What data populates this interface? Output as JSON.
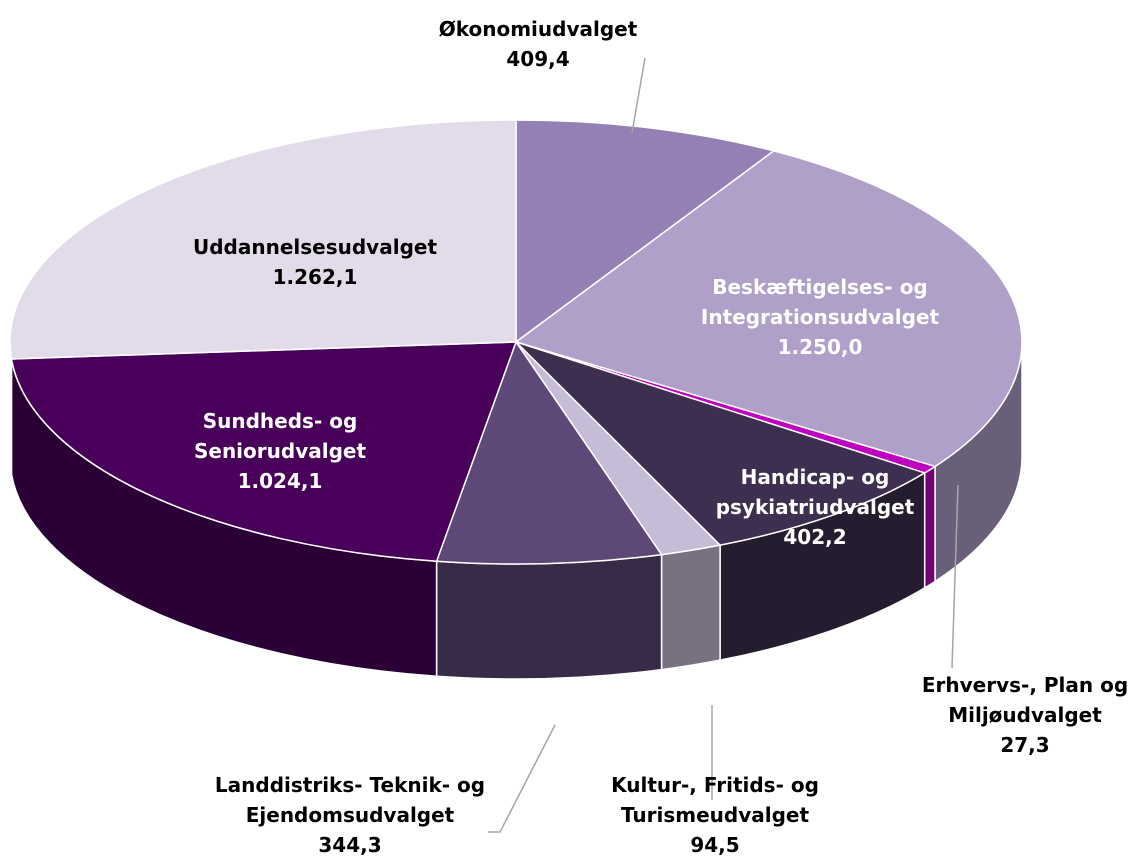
{
  "chart_data": {
    "type": "pie",
    "categories": [
      "Økonomiudvalget",
      "Beskæftigelses- og Integrationsudvalget",
      "Erhvervs-, Plan og Miljøudvalget",
      "Handicap- og psykiatriudvalget",
      "Kultur-, Fritids- og Turismeudvalget",
      "Landdistriks- Teknik- og Ejendomsudvalget",
      "Sundheds- og Seniorudvalget",
      "Uddannelsesudvalget"
    ],
    "values": [
      409.4,
      1250.0,
      27.3,
      402.2,
      94.5,
      344.3,
      1024.1,
      1262.1
    ],
    "value_labels": [
      "409,4",
      "1.250,0",
      "27,3",
      "402,2",
      "94,5",
      "344,3",
      "1.024,1",
      "1.262,1"
    ],
    "colors": [
      "#9480b4",
      "#b09fc8",
      "#c000c0",
      "#3e2e4f",
      "#c6bcd8",
      "#5e4878",
      "#48005a",
      "#e2dcea"
    ]
  }
}
